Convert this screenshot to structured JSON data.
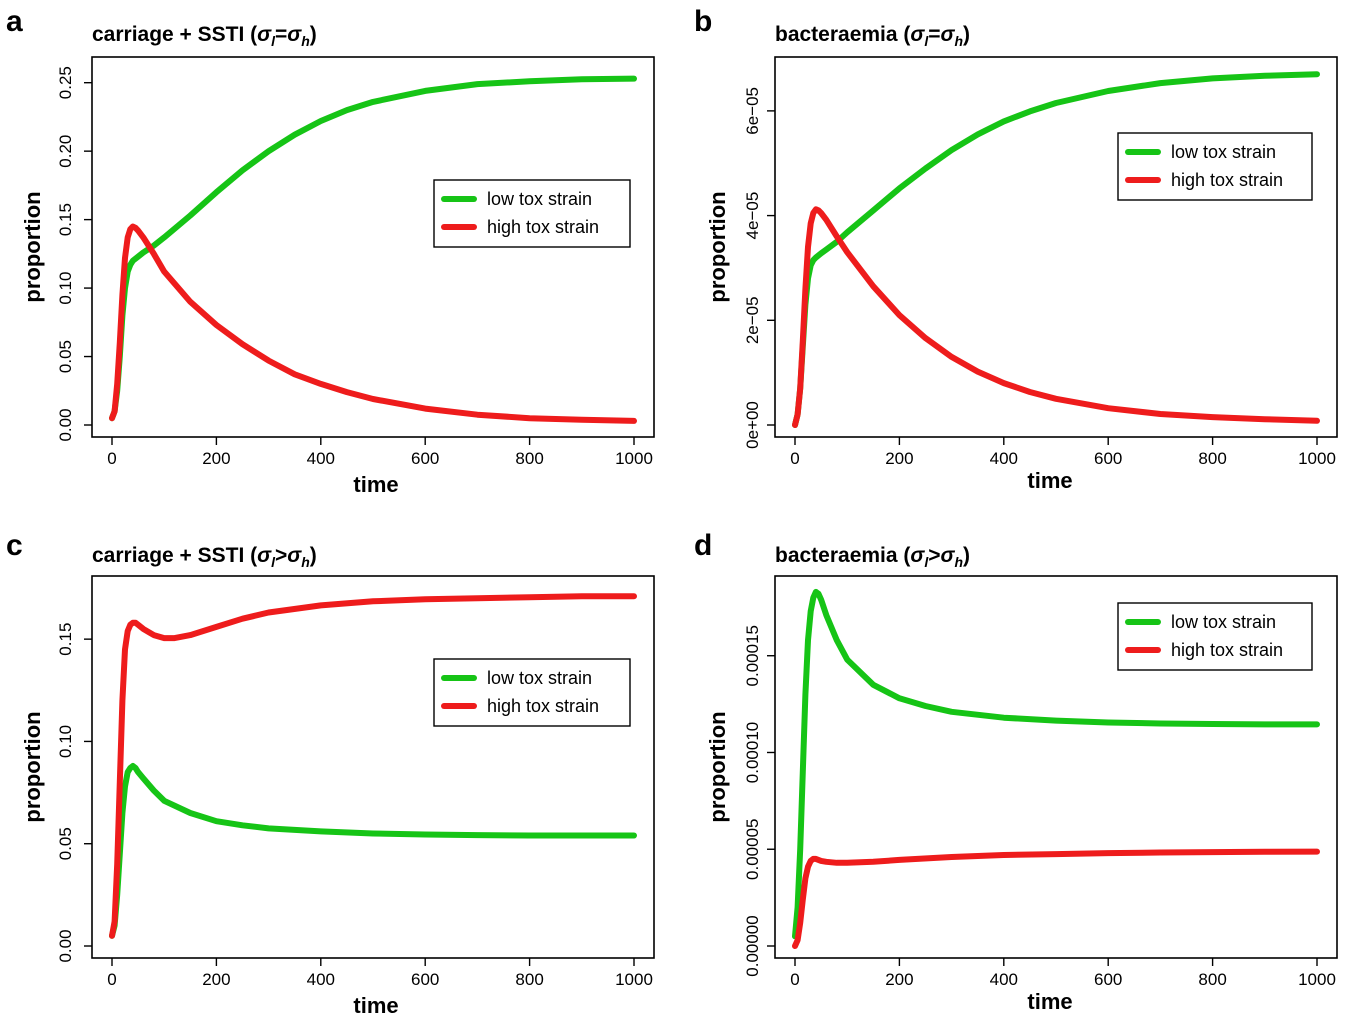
{
  "figure": {
    "panels": [
      {
        "letter": "a",
        "title_main": "carriage + SSTI (",
        "sub1": "l",
        "rel": "=",
        "sub2": "h"
      },
      {
        "letter": "b",
        "title_main": "bacteraemia (",
        "sub1": "l",
        "rel": "=",
        "sub2": "h"
      },
      {
        "letter": "c",
        "title_main": "carriage + SSTI (",
        "sub1": "l",
        "rel": ">",
        "sub2": "h"
      },
      {
        "letter": "d",
        "title_main": "bacteraemia (",
        "sub1": "l",
        "rel": ">",
        "sub2": "h"
      }
    ],
    "sigma": "σ",
    "close_paren": ")"
  },
  "chart_data": [
    {
      "type": "line",
      "title": "carriage + SSTI (σl=σh)",
      "xlabel": "time",
      "ylabel": "proportion",
      "xlim": [
        0,
        1000
      ],
      "ylim": [
        0,
        0.26
      ],
      "xticks": [
        0,
        200,
        400,
        600,
        800,
        1000
      ],
      "xtick_labels": [
        "0",
        "200",
        "400",
        "600",
        "800",
        "1000"
      ],
      "yticks": [
        0,
        0.05,
        0.1,
        0.15,
        0.2,
        0.25
      ],
      "ytick_labels": [
        "0.00",
        "0.05",
        "0.10",
        "0.15",
        "0.20",
        "0.25"
      ],
      "legend_position": "center-right",
      "series": [
        {
          "name": "low tox strain",
          "color": "#16c416",
          "x": [
            0,
            5,
            10,
            15,
            20,
            25,
            30,
            35,
            40,
            50,
            60,
            80,
            100,
            150,
            200,
            250,
            300,
            350,
            400,
            450,
            500,
            600,
            700,
            800,
            900,
            1000
          ],
          "y": [
            0.005,
            0.01,
            0.025,
            0.05,
            0.08,
            0.1,
            0.112,
            0.117,
            0.12,
            0.123,
            0.126,
            0.131,
            0.137,
            0.153,
            0.17,
            0.186,
            0.2,
            0.212,
            0.222,
            0.23,
            0.236,
            0.244,
            0.249,
            0.251,
            0.2525,
            0.253
          ]
        },
        {
          "name": "high tox strain",
          "color": "#ee1c1c",
          "x": [
            0,
            5,
            10,
            15,
            20,
            25,
            30,
            35,
            40,
            45,
            50,
            60,
            80,
            100,
            150,
            200,
            250,
            300,
            350,
            400,
            450,
            500,
            600,
            700,
            800,
            900,
            1000
          ],
          "y": [
            0.005,
            0.01,
            0.03,
            0.06,
            0.095,
            0.122,
            0.137,
            0.143,
            0.145,
            0.144,
            0.142,
            0.137,
            0.125,
            0.112,
            0.09,
            0.073,
            0.059,
            0.047,
            0.037,
            0.03,
            0.024,
            0.019,
            0.012,
            0.0075,
            0.005,
            0.0038,
            0.003
          ]
        }
      ]
    },
    {
      "type": "line",
      "title": "bacteraemia (σl=σh)",
      "xlabel": "time",
      "ylabel": "proportion",
      "xlim": [
        0,
        1000
      ],
      "ylim": [
        0,
        6.8e-05
      ],
      "xticks": [
        0,
        200,
        400,
        600,
        800,
        1000
      ],
      "xtick_labels": [
        "0",
        "200",
        "400",
        "600",
        "800",
        "1000"
      ],
      "yticks": [
        0,
        2e-05,
        4e-05,
        6e-05
      ],
      "ytick_labels": [
        "0e+00",
        "2e−05",
        "4e−05",
        "6e−05"
      ],
      "legend_position": "top-right",
      "series": [
        {
          "name": "low tox strain",
          "color": "#16c416",
          "x": [
            0,
            5,
            10,
            15,
            20,
            25,
            30,
            35,
            40,
            50,
            60,
            80,
            100,
            150,
            200,
            250,
            300,
            350,
            400,
            450,
            500,
            600,
            700,
            800,
            900,
            1000
          ],
          "y": [
            0.0,
            2e-06,
            7e-06,
            1.5e-05,
            2.3e-05,
            2.8e-05,
            3.05e-05,
            3.15e-05,
            3.2e-05,
            3.28e-05,
            3.35e-05,
            3.5e-05,
            3.68e-05,
            4.1e-05,
            4.52e-05,
            4.9e-05,
            5.25e-05,
            5.55e-05,
            5.8e-05,
            5.99e-05,
            6.15e-05,
            6.38e-05,
            6.53e-05,
            6.62e-05,
            6.67e-05,
            6.7e-05
          ]
        },
        {
          "name": "high tox strain",
          "color": "#ee1c1c",
          "x": [
            0,
            5,
            10,
            15,
            20,
            25,
            30,
            35,
            40,
            45,
            50,
            60,
            80,
            100,
            150,
            200,
            250,
            300,
            350,
            400,
            450,
            500,
            600,
            700,
            800,
            900,
            1000
          ],
          "y": [
            0.0,
            2e-06,
            7e-06,
            1.6e-05,
            2.6e-05,
            3.4e-05,
            3.85e-05,
            4.05e-05,
            4.12e-05,
            4.1e-05,
            4.05e-05,
            3.92e-05,
            3.6e-05,
            3.3e-05,
            2.65e-05,
            2.1e-05,
            1.66e-05,
            1.3e-05,
            1.02e-05,
            8e-06,
            6.3e-06,
            5e-06,
            3.2e-06,
            2.1e-06,
            1.5e-06,
            1.1e-06,
            8e-07
          ]
        }
      ]
    },
    {
      "type": "line",
      "title": "carriage + SSTI (σl>σh)",
      "xlabel": "time",
      "ylabel": "proportion",
      "xlim": [
        0,
        1000
      ],
      "ylim": [
        0,
        0.175
      ],
      "xticks": [
        0,
        200,
        400,
        600,
        800,
        1000
      ],
      "xtick_labels": [
        "0",
        "200",
        "400",
        "600",
        "800",
        "1000"
      ],
      "yticks": [
        0,
        0.05,
        0.1,
        0.15
      ],
      "ytick_labels": [
        "0.00",
        "0.05",
        "0.10",
        "0.15"
      ],
      "legend_position": "center-right",
      "series": [
        {
          "name": "low tox strain",
          "color": "#16c416",
          "x": [
            0,
            5,
            10,
            15,
            20,
            25,
            30,
            35,
            40,
            45,
            50,
            60,
            80,
            100,
            150,
            200,
            250,
            300,
            400,
            500,
            600,
            700,
            800,
            900,
            1000
          ],
          "y": [
            0.005,
            0.01,
            0.025,
            0.045,
            0.065,
            0.078,
            0.085,
            0.087,
            0.088,
            0.087,
            0.085,
            0.082,
            0.076,
            0.071,
            0.065,
            0.061,
            0.059,
            0.0575,
            0.056,
            0.055,
            0.0545,
            0.0542,
            0.054,
            0.054,
            0.054
          ]
        },
        {
          "name": "high tox strain",
          "color": "#ee1c1c",
          "x": [
            0,
            5,
            10,
            15,
            20,
            25,
            30,
            35,
            40,
            45,
            50,
            60,
            80,
            100,
            120,
            150,
            200,
            250,
            300,
            400,
            500,
            600,
            700,
            800,
            900,
            1000
          ],
          "y": [
            0.005,
            0.012,
            0.04,
            0.08,
            0.12,
            0.145,
            0.154,
            0.157,
            0.158,
            0.158,
            0.157,
            0.155,
            0.152,
            0.1505,
            0.1505,
            0.152,
            0.156,
            0.16,
            0.163,
            0.1665,
            0.1685,
            0.1695,
            0.17,
            0.1705,
            0.171,
            0.171
          ]
        }
      ]
    },
    {
      "type": "line",
      "title": "bacteraemia (σl>σh)",
      "xlabel": "time",
      "ylabel": "proportion",
      "xlim": [
        0,
        1000
      ],
      "ylim": [
        0,
        0.000185
      ],
      "xticks": [
        0,
        200,
        400,
        600,
        800,
        1000
      ],
      "xtick_labels": [
        "0",
        "200",
        "400",
        "600",
        "800",
        "1000"
      ],
      "yticks": [
        0,
        5e-05,
        0.0001,
        0.00015
      ],
      "ytick_labels": [
        "0.00000",
        "0.00005",
        "0.00010",
        "0.00015"
      ],
      "legend_position": "top-right",
      "series": [
        {
          "name": "low tox strain",
          "color": "#16c416",
          "x": [
            0,
            5,
            10,
            15,
            20,
            25,
            30,
            35,
            40,
            45,
            50,
            60,
            80,
            100,
            150,
            200,
            250,
            300,
            400,
            500,
            600,
            700,
            800,
            900,
            1000
          ],
          "y": [
            5e-06,
            2e-05,
            5e-05,
            9e-05,
            0.00013,
            0.000158,
            0.000173,
            0.00018,
            0.000183,
            0.000182,
            0.000179,
            0.000171,
            0.000158,
            0.000148,
            0.000135,
            0.000128,
            0.000124,
            0.000121,
            0.000118,
            0.0001165,
            0.0001155,
            0.000115,
            0.0001147,
            0.0001145,
            0.0001145
          ]
        },
        {
          "name": "high tox strain",
          "color": "#ee1c1c",
          "x": [
            0,
            5,
            10,
            15,
            20,
            25,
            30,
            35,
            40,
            45,
            50,
            60,
            80,
            100,
            150,
            200,
            300,
            400,
            500,
            600,
            700,
            800,
            900,
            1000
          ],
          "y": [
            0.0,
            3e-06,
            1.2e-05,
            2.4e-05,
            3.5e-05,
            4.1e-05,
            4.4e-05,
            4.5e-05,
            4.5e-05,
            4.45e-05,
            4.4e-05,
            4.35e-05,
            4.3e-05,
            4.3e-05,
            4.35e-05,
            4.45e-05,
            4.6e-05,
            4.7e-05,
            4.75e-05,
            4.8e-05,
            4.83e-05,
            4.85e-05,
            4.87e-05,
            4.88e-05
          ]
        }
      ]
    }
  ]
}
